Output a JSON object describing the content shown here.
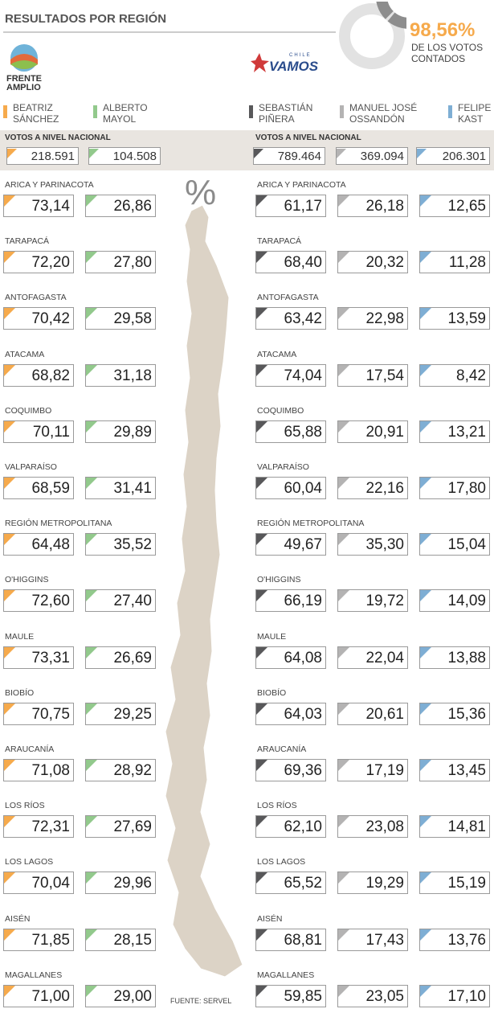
{
  "header": {
    "title": "RESULTADOS POR REGIÓN",
    "counted": {
      "value": 98.56,
      "label": "98,56%"
    },
    "counted_text": "DE LOS VOTOS CONTADOS"
  },
  "coalitions": {
    "left": "FRENTE AMPLIO",
    "right_small": "CHILE",
    "right": "VAMOS"
  },
  "candidates": [
    {
      "name": "BEATRIZ SÁNCHEZ",
      "color": "#f6aa4c"
    },
    {
      "name": "ALBERTO MAYOL",
      "color": "#92c98c"
    },
    {
      "name": "SEBASTIÁN PIÑERA",
      "color": "#58585a"
    },
    {
      "name": "MANUEL JOSÉ OSSANDÓN",
      "color": "#b4b3b3"
    },
    {
      "name": "FELIPE KAST",
      "color": "#7eaed4"
    }
  ],
  "national_label": "VOTOS A NIVEL NACIONAL",
  "national_votes": [
    "218.591",
    "104.508",
    "789.464",
    "369.094",
    "206.301"
  ],
  "percent_sign": "%",
  "source": "FUENTE: SERVEL",
  "regions": [
    {
      "name": "ARICA Y PARINACOTA",
      "values": [
        "73,14",
        "26,86",
        "61,17",
        "26,18",
        "12,65"
      ]
    },
    {
      "name": "TARAPACÁ",
      "values": [
        "72,20",
        "27,80",
        "68,40",
        "20,32",
        "11,28"
      ]
    },
    {
      "name": "ANTOFAGASTA",
      "values": [
        "70,42",
        "29,58",
        "63,42",
        "22,98",
        "13,59"
      ]
    },
    {
      "name": "ATACAMA",
      "values": [
        "68,82",
        "31,18",
        "74,04",
        "17,54",
        "8,42"
      ]
    },
    {
      "name": "COQUIMBO",
      "values": [
        "70,11",
        "29,89",
        "65,88",
        "20,91",
        "13,21"
      ]
    },
    {
      "name": "VALPARAÍSO",
      "values": [
        "68,59",
        "31,41",
        "60,04",
        "22,16",
        "17,80"
      ]
    },
    {
      "name": "REGIÓN METROPOLITANA",
      "values": [
        "64,48",
        "35,52",
        "49,67",
        "35,30",
        "15,04"
      ]
    },
    {
      "name": "O'HIGGINS",
      "values": [
        "72,60",
        "27,40",
        "66,19",
        "19,72",
        "14,09"
      ]
    },
    {
      "name": "MAULE",
      "values": [
        "73,31",
        "26,69",
        "64,08",
        "22,04",
        "13,88"
      ]
    },
    {
      "name": "BIOBÍO",
      "values": [
        "70,75",
        "29,25",
        "64,03",
        "20,61",
        "15,36"
      ]
    },
    {
      "name": "ARAUCANÍA",
      "values": [
        "71,08",
        "28,92",
        "69,36",
        "17,19",
        "13,45"
      ]
    },
    {
      "name": "LOS RÍOS",
      "values": [
        "72,31",
        "27,69",
        "62,10",
        "23,08",
        "14,81"
      ]
    },
    {
      "name": "LOS LAGOS",
      "values": [
        "70,04",
        "29,96",
        "65,52",
        "19,29",
        "15,19"
      ]
    },
    {
      "name": "AISÉN",
      "values": [
        "71,85",
        "28,15",
        "68,81",
        "17,43",
        "13,76"
      ]
    },
    {
      "name": "MAGALLANES",
      "values": [
        "71,00",
        "29,00",
        "59,85",
        "23,05",
        "17,10"
      ]
    }
  ]
}
